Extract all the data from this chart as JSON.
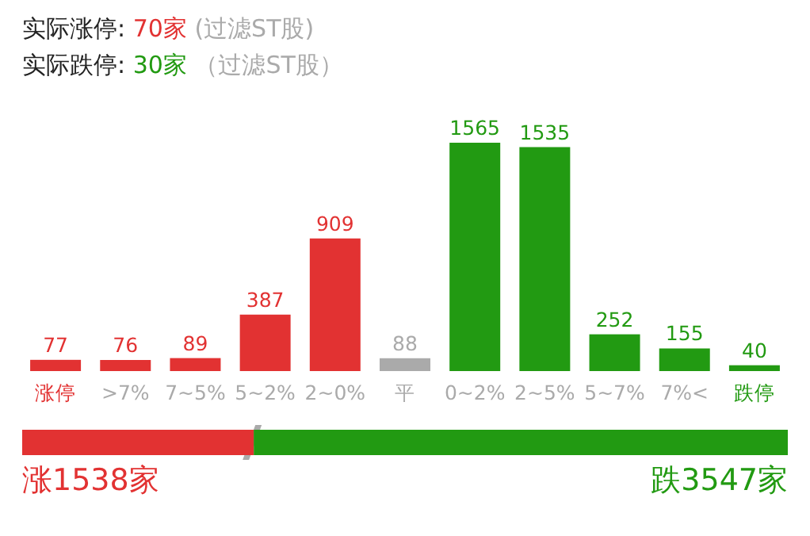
{
  "chart_data": [
    {
      "type": "bar",
      "annotations": [
        "实际涨停: 70家 (过滤ST股)",
        "实际跌停: 30家 （过滤ST股）"
      ],
      "categories": [
        "涨停",
        ">7%",
        "7~5%",
        "5~2%",
        "2~0%",
        "平",
        "0~2%",
        "2~5%",
        "5~7%",
        "7%<",
        "跌停"
      ],
      "values": [
        77,
        76,
        89,
        387,
        909,
        88,
        1565,
        1535,
        252,
        155,
        40
      ],
      "colors": [
        "#e23232",
        "#e23232",
        "#e23232",
        "#e23232",
        "#e23232",
        "#aaaaaa",
        "#229a12",
        "#229a12",
        "#229a12",
        "#229a12",
        "#229a12"
      ],
      "data_labels": true
    },
    {
      "type": "bar",
      "orientation": "horizontal",
      "stacked": true,
      "categories": [
        null
      ],
      "series": [
        {
          "color": "#e23232",
          "values": [
            1538
          ],
          "value_labels": [
            "涨1538家"
          ]
        },
        {
          "color": "#229a12",
          "values": [
            3547
          ],
          "value_labels": [
            "跌3547家"
          ]
        }
      ]
    }
  ]
}
